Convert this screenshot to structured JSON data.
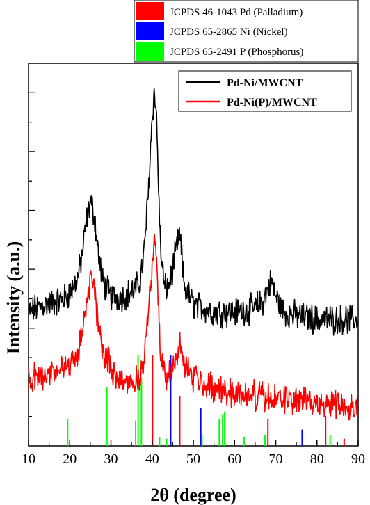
{
  "chart_data": {
    "type": "line",
    "xlabel": "2θ (degree)",
    "ylabel": "Intensity (a.u.)",
    "xlim": [
      10,
      90
    ],
    "x_ticks": [
      "10",
      "20",
      "30",
      "40",
      "50",
      "60",
      "70",
      "80",
      "90"
    ],
    "grid": false,
    "series": [
      {
        "name": "Pd-Ni/MWCNT",
        "color": "#000000",
        "x": [
          10,
          14,
          18,
          20,
          22,
          23,
          24,
          25,
          26,
          27,
          28,
          30,
          33,
          36,
          37,
          38,
          39,
          40,
          40.5,
          41,
          41.5,
          42,
          43,
          44,
          45,
          46,
          46.5,
          47,
          47.5,
          48,
          50,
          55,
          60,
          65,
          67,
          68,
          69,
          70,
          72,
          75,
          80,
          85,
          90
        ],
        "y": [
          35,
          37,
          38,
          40,
          44,
          50,
          58,
          64,
          60,
          50,
          43,
          39,
          39,
          41,
          43,
          50,
          65,
          86,
          92,
          88,
          70,
          52,
          41,
          42,
          46,
          52,
          55,
          52,
          45,
          41,
          37,
          35,
          35,
          36,
          38,
          41,
          43,
          39,
          35,
          34,
          33,
          33,
          33
        ]
      },
      {
        "name": "Pd-Ni(P)/MWCNT",
        "color": "#ff0000",
        "x": [
          10,
          14,
          18,
          20,
          22,
          23,
          24,
          25,
          26,
          27,
          28,
          30,
          33,
          36,
          37,
          38,
          39,
          40,
          40.5,
          41,
          41.5,
          42,
          43,
          44,
          45,
          46,
          47,
          48,
          50,
          55,
          60,
          65,
          70,
          75,
          80,
          85,
          90
        ],
        "y": [
          17,
          19,
          20,
          21,
          24,
          30,
          38,
          43,
          40,
          32,
          25,
          20,
          17,
          17,
          18,
          22,
          34,
          46,
          52,
          50,
          38,
          26,
          19,
          19,
          20,
          24,
          26,
          21,
          18,
          15,
          14,
          13,
          12,
          12,
          11,
          11,
          11
        ]
      }
    ],
    "reference_patterns": [
      {
        "name": "JCPDS 46-1043 Pd (Palladium)",
        "color": "#ff0000",
        "positions": [
          40.1,
          46.7,
          68.1,
          82.1,
          86.6
        ],
        "intensities": [
          100,
          55,
          30,
          33,
          8
        ]
      },
      {
        "name": "JCPDS 65-2865 Ni (Nickel)",
        "color": "#0000ff",
        "positions": [
          44.5,
          51.8,
          76.4
        ],
        "intensities": [
          100,
          42,
          18
        ]
      },
      {
        "name": "JCPDS 65-2491 P (Phosphorus)",
        "color": "#00ff00",
        "positions": [
          19.5,
          29.0,
          36.0,
          36.6,
          37.4,
          41.8,
          43.5,
          52.1,
          56.3,
          57.1,
          57.6,
          62.3,
          67.4,
          83.2
        ],
        "intensities": [
          30,
          65,
          28,
          100,
          75,
          10,
          8,
          12,
          30,
          35,
          38,
          10,
          12,
          12
        ]
      }
    ],
    "legends": {
      "reference_box": {
        "placement": "top-right, above plot",
        "entries": [
          {
            "label": "JCPDS 46-1043 Pd (Palladium)",
            "color": "#ff0000"
          },
          {
            "label": "JCPDS 65-2865 Ni (Nickel)",
            "color": "#0000ff"
          },
          {
            "label": "JCPDS 65-2491 P (Phosphorus)",
            "color": "#00ff00"
          }
        ]
      },
      "series_box": {
        "placement": "top-right, inside plot",
        "entries": [
          {
            "label": "Pd-Ni/MWCNT",
            "color": "#000000"
          },
          {
            "label": "Pd-Ni(P)/MWCNT",
            "color": "#ff0000"
          }
        ]
      }
    }
  }
}
